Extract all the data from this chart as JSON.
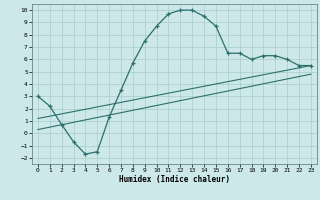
{
  "xlabel": "Humidex (Indice chaleur)",
  "xlim": [
    -0.5,
    23.5
  ],
  "ylim": [
    -2.5,
    10.5
  ],
  "xticks": [
    0,
    1,
    2,
    3,
    4,
    5,
    6,
    7,
    8,
    9,
    10,
    11,
    12,
    13,
    14,
    15,
    16,
    17,
    18,
    19,
    20,
    21,
    22,
    23
  ],
  "yticks": [
    -2,
    -1,
    0,
    1,
    2,
    3,
    4,
    5,
    6,
    7,
    8,
    9,
    10
  ],
  "bg_color": "#cce8e8",
  "grid_color": "#aacccc",
  "line_color": "#2d6e6e",
  "curve1_x": [
    0,
    1,
    2,
    3,
    4,
    5,
    6,
    7,
    8,
    9,
    10,
    11,
    12,
    13,
    14,
    15,
    16,
    17,
    18,
    19,
    20,
    21,
    22,
    23
  ],
  "curve1_y": [
    3.0,
    2.2,
    0.7,
    -0.7,
    -1.7,
    -1.5,
    1.3,
    3.5,
    5.7,
    7.5,
    8.7,
    9.7,
    10.0,
    10.0,
    9.5,
    8.7,
    6.5,
    6.5,
    6.0,
    6.3,
    6.3,
    6.0,
    5.5,
    5.5
  ],
  "line2_x": [
    0,
    23
  ],
  "line2_y": [
    1.2,
    5.5
  ],
  "line3_x": [
    0,
    23
  ],
  "line3_y": [
    0.3,
    4.8
  ]
}
